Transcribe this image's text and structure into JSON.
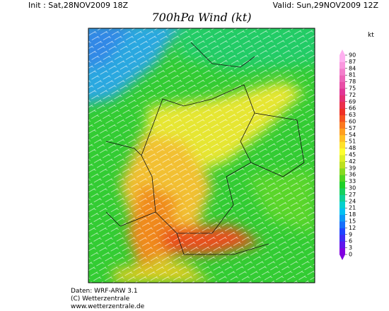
{
  "header": {
    "init": "Init : Sat,28NOV2009 18Z",
    "valid": "Valid: Sun,29NOV2009 12Z",
    "title": "700hPa Wind (kt)"
  },
  "colorbar": {
    "unit": "kt",
    "ticks": [
      0,
      3,
      6,
      9,
      12,
      15,
      18,
      21,
      24,
      27,
      30,
      33,
      36,
      39,
      42,
      45,
      48,
      51,
      54,
      57,
      60,
      63,
      66,
      69,
      72,
      75,
      78,
      81,
      84,
      87,
      90
    ]
  },
  "footer": {
    "lines": [
      "Daten: WRF-ARW 3.1",
      "(C) Wetterzentrale",
      "www.wetterzentrale.de"
    ]
  }
}
